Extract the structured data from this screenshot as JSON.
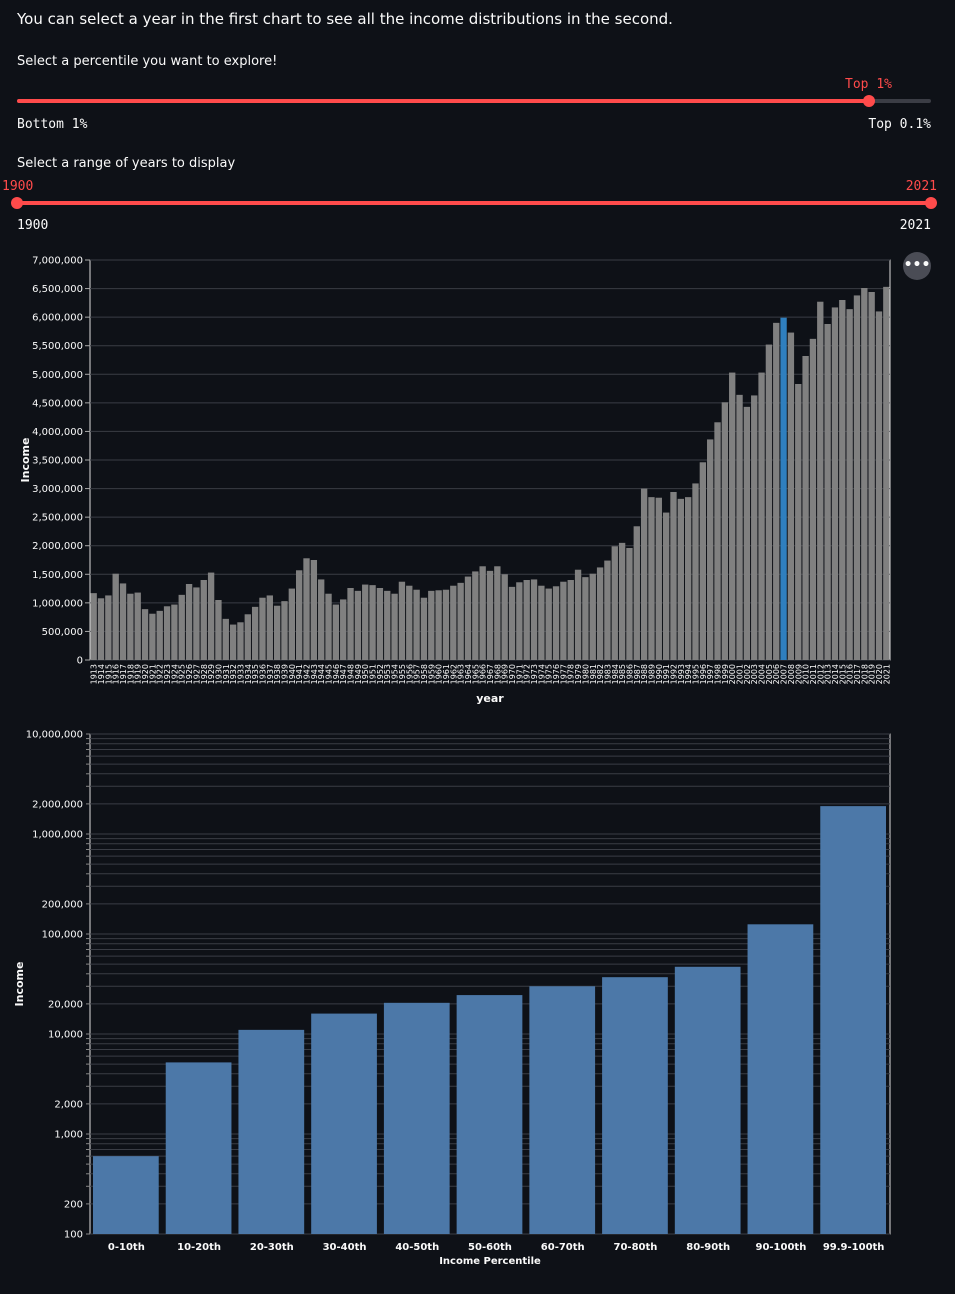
{
  "intro_text": "You can select a year in the first chart to see all the income distributions in the second.",
  "percentile_slider": {
    "label": "Select a percentile you want to explore!",
    "value": "Top 1%",
    "min_label": "Bottom 1%",
    "max_label": "Top 0.1%",
    "value_fraction": 0.9322
  },
  "year_slider": {
    "label": "Select a range of years to display",
    "low_value": "1900",
    "high_value": "2021",
    "min_label": "1900",
    "max_label": "2021"
  },
  "menu_icon": "more-horizontal-icon",
  "colors": {
    "accent": "#ff4b4b",
    "bar": "#808080",
    "selected_bar": "#2f7fbf",
    "bar2": "#4c78a8",
    "background": "#0e1117"
  },
  "chart_data": [
    {
      "type": "bar",
      "xlabel": "year",
      "ylabel": "Income",
      "ylim": [
        0,
        7000000
      ],
      "yticks": [
        0,
        500000,
        1000000,
        1500000,
        2000000,
        2500000,
        3000000,
        3500000,
        4000000,
        4500000,
        5000000,
        5500000,
        6000000,
        6500000,
        7000000
      ],
      "grid": true,
      "selected": "2007",
      "first_year": 1913,
      "values": [
        1170000,
        1080000,
        1130000,
        1510000,
        1340000,
        1160000,
        1180000,
        890000,
        810000,
        860000,
        940000,
        970000,
        1140000,
        1330000,
        1270000,
        1400000,
        1530000,
        1050000,
        720000,
        620000,
        660000,
        800000,
        930000,
        1090000,
        1130000,
        950000,
        1030000,
        1250000,
        1570000,
        1780000,
        1750000,
        1410000,
        1160000,
        970000,
        1060000,
        1260000,
        1210000,
        1320000,
        1310000,
        1260000,
        1210000,
        1160000,
        1370000,
        1300000,
        1230000,
        1090000,
        1210000,
        1220000,
        1230000,
        1300000,
        1350000,
        1460000,
        1550000,
        1640000,
        1560000,
        1640000,
        1500000,
        1280000,
        1360000,
        1400000,
        1410000,
        1300000,
        1250000,
        1290000,
        1370000,
        1400000,
        1580000,
        1450000,
        1510000,
        1620000,
        1740000,
        1990000,
        2050000,
        1960000,
        2340000,
        3000000,
        2850000,
        2840000,
        2580000,
        2940000,
        2820000,
        2850000,
        3090000,
        3460000,
        3860000,
        4160000,
        4510000,
        5030000,
        4640000,
        4430000,
        4630000,
        5030000,
        5520000,
        5900000,
        5990000,
        5730000,
        4830000,
        5320000,
        5620000,
        6270000,
        5880000,
        6170000,
        6300000,
        6140000,
        6380000,
        6510000,
        6440000,
        6100000,
        6530000
      ]
    },
    {
      "type": "bar",
      "scale": "log",
      "xlabel": "Income Percentile",
      "ylabel": "Income",
      "ylim": [
        100,
        10000000
      ],
      "yticks": [
        100,
        200,
        1000,
        2000,
        10000,
        20000,
        100000,
        200000,
        1000000,
        2000000,
        10000000
      ],
      "grid": true,
      "categories": [
        "0-10th",
        "10-20th",
        "20-30th",
        "30-40th",
        "40-50th",
        "50-60th",
        "60-70th",
        "70-80th",
        "80-90th",
        "90-100th",
        "99.9-100th"
      ],
      "values": [
        600,
        5200,
        11000,
        16000,
        20500,
        24500,
        30000,
        37000,
        47000,
        125000,
        1900000
      ]
    }
  ]
}
